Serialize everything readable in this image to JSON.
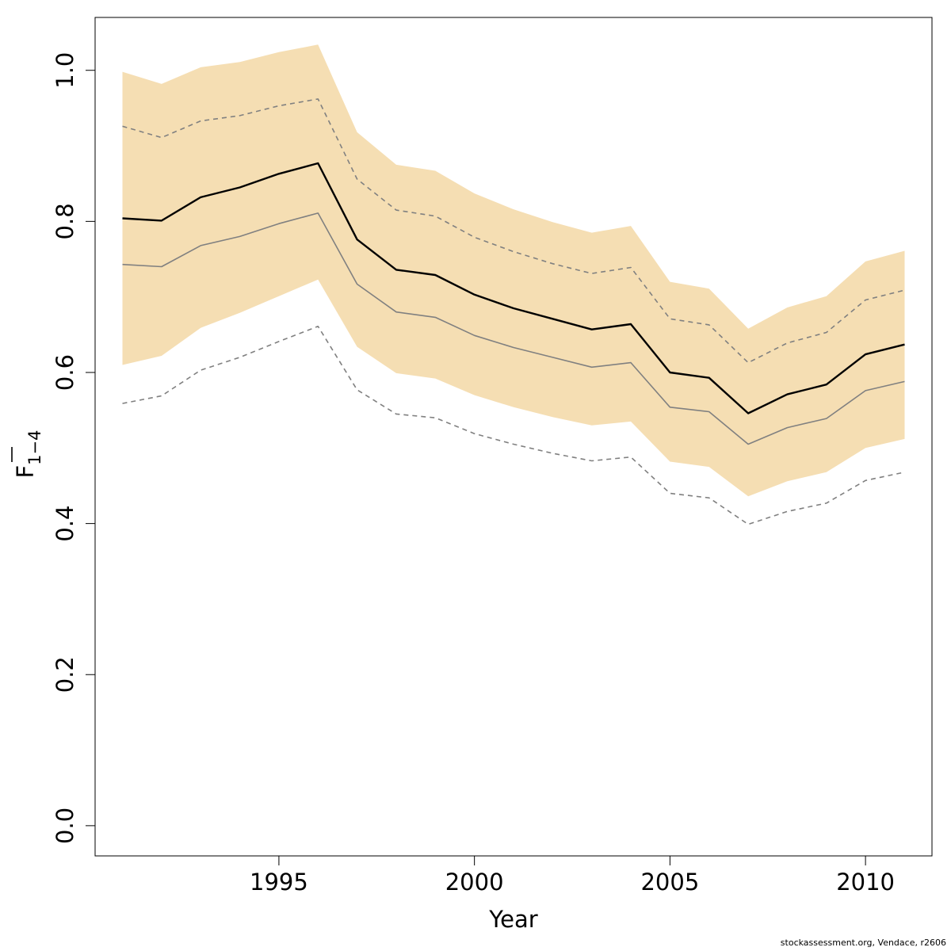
{
  "chart_data": {
    "type": "line",
    "xlabel": "Year",
    "ylabel": {
      "main": "F",
      "subscript": "1−4"
    },
    "xlim": [
      1990.3,
      2011.7
    ],
    "ylim": [
      -0.04,
      1.07
    ],
    "x_ticks": [
      1995,
      2000,
      2005,
      2010
    ],
    "y_ticks": [
      "0.0",
      "0.2",
      "0.4",
      "0.6",
      "0.8",
      "1.0"
    ],
    "grid": false,
    "x": [
      1991,
      1992,
      1993,
      1994,
      1995,
      1996,
      1997,
      1998,
      1999,
      2000,
      2001,
      2002,
      2003,
      2004,
      2005,
      2006,
      2007,
      2008,
      2009,
      2010,
      2011
    ],
    "band_color": "#f5deb3",
    "band": {
      "upper": [
        0.998,
        0.982,
        1.004,
        1.011,
        1.024,
        1.034,
        0.918,
        0.875,
        0.867,
        0.837,
        0.816,
        0.799,
        0.785,
        0.794,
        0.72,
        0.711,
        0.658,
        0.686,
        0.701,
        0.747,
        0.761
      ],
      "lower": [
        0.61,
        0.622,
        0.659,
        0.679,
        0.701,
        0.723,
        0.634,
        0.599,
        0.592,
        0.57,
        0.554,
        0.541,
        0.53,
        0.535,
        0.482,
        0.475,
        0.436,
        0.456,
        0.468,
        0.5,
        0.512
      ]
    },
    "series": [
      {
        "values": [
          0.804,
          0.801,
          0.832,
          0.845,
          0.863,
          0.877,
          0.776,
          0.736,
          0.729,
          0.703,
          0.685,
          0.671,
          0.657,
          0.664,
          0.6,
          0.593,
          0.546,
          0.571,
          0.584,
          0.624,
          0.637
        ],
        "color": "#000000",
        "style": "solid",
        "width": 2.4
      },
      {
        "values": [
          0.743,
          0.74,
          0.768,
          0.78,
          0.797,
          0.811,
          0.717,
          0.68,
          0.673,
          0.649,
          0.633,
          0.62,
          0.607,
          0.613,
          0.554,
          0.548,
          0.505,
          0.527,
          0.539,
          0.576,
          0.588
        ],
        "color": "#808080",
        "style": "solid",
        "width": 1.6
      },
      {
        "values": [
          0.926,
          0.911,
          0.933,
          0.94,
          0.953,
          0.962,
          0.856,
          0.815,
          0.807,
          0.779,
          0.76,
          0.744,
          0.731,
          0.739,
          0.671,
          0.663,
          0.613,
          0.639,
          0.653,
          0.696,
          0.709
        ],
        "color": "#808080",
        "style": "dashed",
        "width": 1.6
      },
      {
        "values": [
          0.559,
          0.569,
          0.603,
          0.62,
          0.641,
          0.661,
          0.577,
          0.545,
          0.54,
          0.519,
          0.505,
          0.493,
          0.483,
          0.488,
          0.44,
          0.434,
          0.399,
          0.416,
          0.427,
          0.457,
          0.468
        ],
        "color": "#808080",
        "style": "dashed",
        "width": 1.6
      }
    ]
  },
  "footer": "stockassessment.org, Vendace, r2606"
}
